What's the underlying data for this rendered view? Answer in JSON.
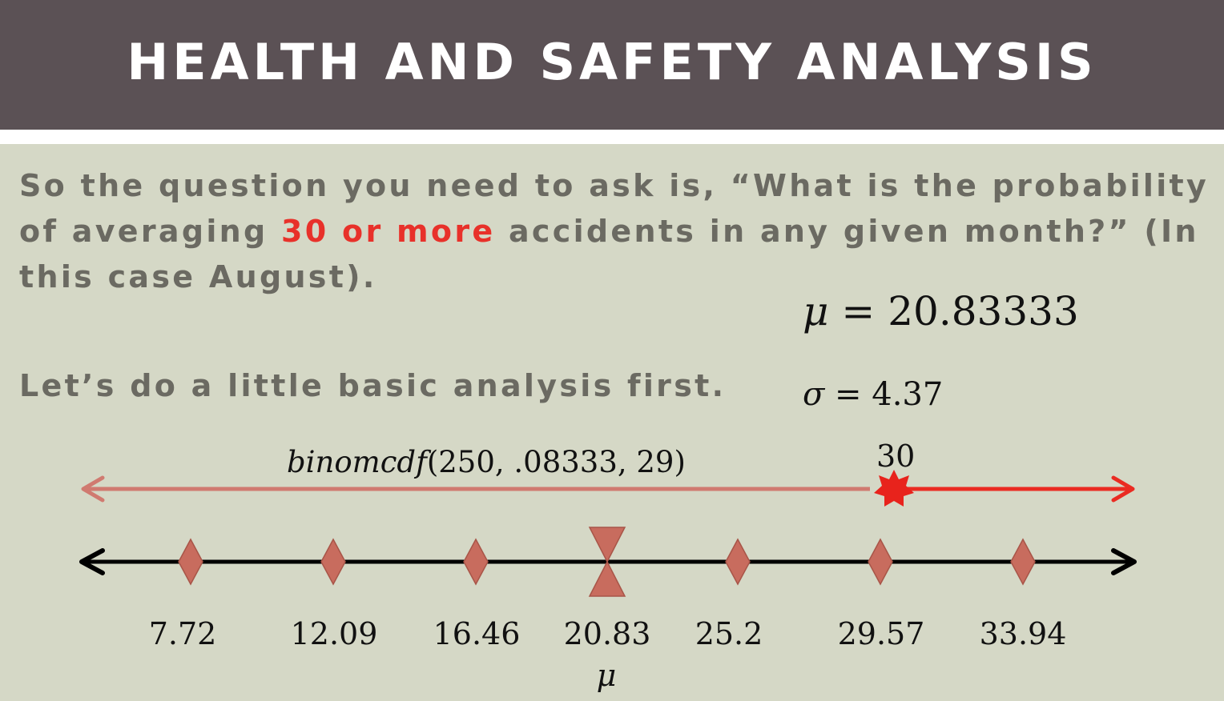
{
  "header": {
    "title": "HEALTH AND SAFETY ANALYSIS"
  },
  "text": {
    "para1_before": "So the question you need to ask is, “What is the probability of averaging ",
    "para1_highlight": "30 or more",
    "para1_after": " accidents in any given month?” (In this case August).",
    "para2": "Let’s do a little basic analysis first."
  },
  "stats": {
    "mu_symbol": "μ",
    "mu_value": "= 20.83333",
    "sigma_symbol": "σ",
    "sigma_value": "= 4.37"
  },
  "annotations": {
    "binom_fn": "binomcdf",
    "binom_args": "(250, .08333, 29)",
    "threshold_label": "30",
    "mean_marker_label": "μ"
  },
  "number_line": {
    "ticks": [
      "7.72",
      "12.09",
      "16.46",
      "20.83",
      "25.2",
      "29.57",
      "33.94"
    ],
    "mean_tick": "20.83",
    "threshold": 30
  },
  "colors": {
    "header_bg": "#5b5155",
    "page_bg": "#d5d8c6",
    "highlight": "#e8312a",
    "left_arrow": "#d07a70",
    "right_arrow": "#ea2b22",
    "marker_fill": "#c86c5e"
  }
}
